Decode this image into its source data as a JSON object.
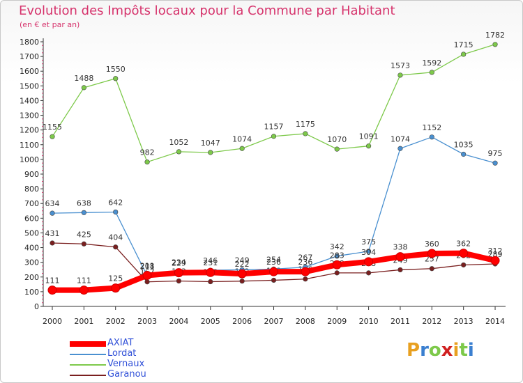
{
  "header": {
    "title": "Evolution des Impôts locaux pour la Commune par Habitant",
    "subtitle": "(en € et par an)"
  },
  "logo": {
    "text": "Proxiti"
  },
  "chart_data": {
    "type": "line",
    "title": "Evolution des Impôts locaux pour la Commune par Habitant",
    "subtitle": "(en € et par an)",
    "categories": [
      "2000",
      "2001",
      "2002",
      "2003",
      "2004",
      "2005",
      "2006",
      "2007",
      "2008",
      "2009",
      "2010",
      "2011",
      "2012",
      "2013",
      "2014"
    ],
    "ylim": [
      0,
      1800
    ],
    "yticks": [
      0,
      100,
      200,
      300,
      400,
      500,
      600,
      700,
      800,
      900,
      1000,
      1100,
      1200,
      1300,
      1400,
      1500,
      1600,
      1700,
      1800
    ],
    "grid": false,
    "legend_position": "bottom-left",
    "series": [
      {
        "name": "AXIAT",
        "color": "#ff0000",
        "values": [
          111,
          111,
          125,
          211,
          229,
          231,
          222,
          236,
          236,
          283,
          304,
          338,
          360,
          362,
          312
        ]
      },
      {
        "name": "Lordat",
        "color": "#4a90d0",
        "values": [
          634,
          638,
          642,
          208,
          234,
          246,
          249,
          254,
          267,
          342,
          375,
          1074,
          1152,
          1035,
          975
        ]
      },
      {
        "name": "Vernaux",
        "color": "#7dc94a",
        "values": [
          1155,
          1488,
          1550,
          982,
          1052,
          1047,
          1074,
          1157,
          1175,
          1070,
          1091,
          1573,
          1592,
          1715,
          1782
        ]
      },
      {
        "name": "Garanou",
        "color": "#7a1f1f",
        "values": [
          431,
          425,
          404,
          167,
          173,
          168,
          172,
          178,
          186,
          228,
          228,
          249,
          257,
          282,
          289
        ]
      }
    ]
  }
}
